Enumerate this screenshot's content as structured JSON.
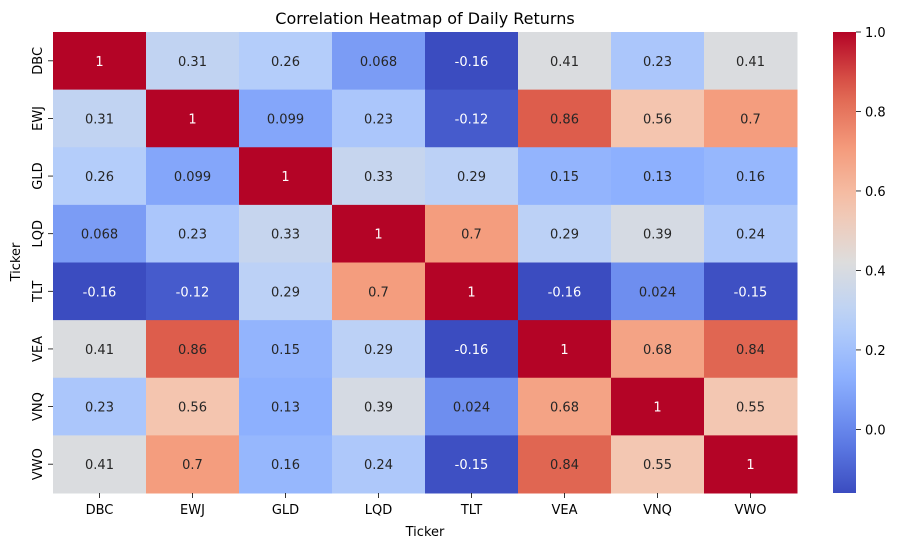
{
  "chart_data": {
    "type": "heatmap",
    "title": "Correlation Heatmap of Daily Returns",
    "xlabel": "Ticker",
    "ylabel": "Ticker",
    "x_categories": [
      "DBC",
      "EWJ",
      "GLD",
      "LQD",
      "TLT",
      "VEA",
      "VNQ",
      "VWO"
    ],
    "y_categories": [
      "DBC",
      "EWJ",
      "GLD",
      "LQD",
      "TLT",
      "VEA",
      "VNQ",
      "VWO"
    ],
    "values": [
      [
        1,
        0.31,
        0.26,
        0.068,
        -0.16,
        0.41,
        0.23,
        0.41
      ],
      [
        0.31,
        1,
        0.099,
        0.23,
        -0.12,
        0.86,
        0.56,
        0.7
      ],
      [
        0.26,
        0.099,
        1,
        0.33,
        0.29,
        0.15,
        0.13,
        0.16
      ],
      [
        0.068,
        0.23,
        0.33,
        1,
        0.7,
        0.29,
        0.39,
        0.24
      ],
      [
        -0.16,
        -0.12,
        0.29,
        0.7,
        1,
        -0.16,
        0.024,
        -0.15
      ],
      [
        0.41,
        0.86,
        0.15,
        0.29,
        -0.16,
        1,
        0.68,
        0.84
      ],
      [
        0.23,
        0.56,
        0.13,
        0.39,
        0.024,
        0.68,
        1,
        0.55
      ],
      [
        0.41,
        0.7,
        0.16,
        0.24,
        -0.15,
        0.84,
        0.55,
        1
      ]
    ],
    "colormap": "coolwarm",
    "value_range": [
      -0.16,
      1.0
    ],
    "colorbar_ticks": [
      0.0,
      0.2,
      0.4,
      0.6,
      0.8,
      1.0
    ],
    "colorbar_tick_labels": [
      "0.0",
      "0.2",
      "0.4",
      "0.6",
      "0.8",
      "1.0"
    ],
    "annotations": true,
    "grid": false,
    "legend": "colorbar-right"
  }
}
